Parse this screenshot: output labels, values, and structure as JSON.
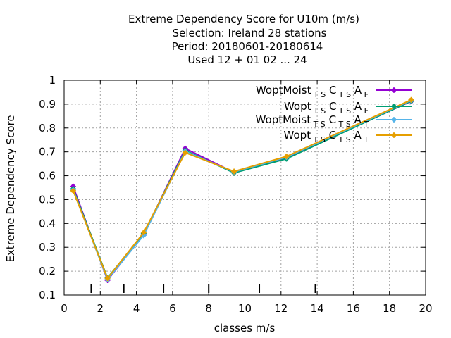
{
  "chart_data": {
    "type": "line",
    "title_lines": [
      "Extreme Dependency Score  for U10m (m/s)",
      "Selection: Ireland      28 stations",
      "Period: 20180601-20180614",
      "Used  12 + 01 02 ... 24"
    ],
    "xlabel": "classes m/s",
    "ylabel": "Extreme Dependency Score",
    "xlim": [
      0,
      20
    ],
    "ylim": [
      0.1,
      1.0
    ],
    "x_ticks": [
      "0",
      "2",
      "4",
      "6",
      "8",
      "10",
      "12",
      "14",
      "16",
      "18",
      "20"
    ],
    "y_ticks": [
      "0.1",
      "0.2",
      "0.3",
      "0.4",
      "0.5",
      "0.6",
      "0.7",
      "0.8",
      "0.9",
      "1"
    ],
    "grid": true,
    "legend_position": "top-right",
    "class_boundaries": [
      1.5,
      3.3,
      5.5,
      8.0,
      10.8,
      13.9
    ],
    "series": [
      {
        "name_base": "WoptMoist",
        "name_sub1": "T S",
        "name_mid": "C",
        "name_sub2": "T S",
        "name_tail": "A",
        "name_sub3": "F",
        "color": "#9400d3",
        "x": [
          0.5,
          2.4,
          4.4,
          6.7,
          9.4,
          12.3,
          19.2
        ],
        "y": [
          0.555,
          0.162,
          0.355,
          0.714,
          0.614,
          0.675,
          0.912
        ]
      },
      {
        "name_base": "Wopt",
        "name_sub1": "T S",
        "name_mid": "C",
        "name_sub2": "T S",
        "name_tail": "A",
        "name_sub3": "F",
        "color": "#009e73",
        "x": [
          0.5,
          2.4,
          4.4,
          6.7,
          9.4,
          12.3,
          19.2
        ],
        "y": [
          0.545,
          0.172,
          0.358,
          0.706,
          0.612,
          0.671,
          0.913
        ]
      },
      {
        "name_base": "WoptMoist",
        "name_sub1": "T S",
        "name_mid": "C",
        "name_sub2": "T S",
        "name_tail": "A",
        "name_sub3": "T",
        "color": "#56b4e9",
        "x": [
          0.5,
          2.4,
          4.4,
          6.7,
          9.4,
          12.3,
          19.2
        ],
        "y": [
          0.54,
          0.165,
          0.35,
          0.702,
          0.616,
          0.678,
          0.916
        ]
      },
      {
        "name_base": "Wopt",
        "name_sub1": "T S",
        "name_mid": "C",
        "name_sub2": "T S",
        "name_tail": "A",
        "name_sub3": "T",
        "color": "#e69f00",
        "x": [
          0.5,
          2.4,
          4.4,
          6.7,
          9.4,
          12.3,
          19.2
        ],
        "y": [
          0.537,
          0.17,
          0.362,
          0.697,
          0.618,
          0.681,
          0.918
        ]
      }
    ]
  }
}
